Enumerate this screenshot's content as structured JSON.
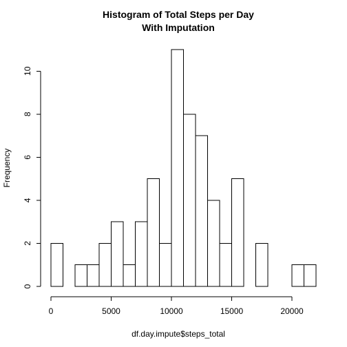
{
  "chart_data": {
    "type": "bar",
    "title": "Histogram of Total Steps per Day",
    "subtitle": "With Imputation",
    "xlabel": "df.day.impute$steps_total",
    "ylabel": "Frequency",
    "bin_width": 1000,
    "bins": [
      {
        "start": 0,
        "end": 1000,
        "count": 2
      },
      {
        "start": 1000,
        "end": 2000,
        "count": 0
      },
      {
        "start": 2000,
        "end": 3000,
        "count": 1
      },
      {
        "start": 3000,
        "end": 4000,
        "count": 1
      },
      {
        "start": 4000,
        "end": 5000,
        "count": 2
      },
      {
        "start": 5000,
        "end": 6000,
        "count": 3
      },
      {
        "start": 6000,
        "end": 7000,
        "count": 1
      },
      {
        "start": 7000,
        "end": 8000,
        "count": 3
      },
      {
        "start": 8000,
        "end": 9000,
        "count": 5
      },
      {
        "start": 9000,
        "end": 10000,
        "count": 2
      },
      {
        "start": 10000,
        "end": 11000,
        "count": 11
      },
      {
        "start": 11000,
        "end": 12000,
        "count": 8
      },
      {
        "start": 12000,
        "end": 13000,
        "count": 7
      },
      {
        "start": 13000,
        "end": 14000,
        "count": 4
      },
      {
        "start": 14000,
        "end": 15000,
        "count": 2
      },
      {
        "start": 15000,
        "end": 16000,
        "count": 5
      },
      {
        "start": 16000,
        "end": 17000,
        "count": 0
      },
      {
        "start": 17000,
        "end": 18000,
        "count": 2
      },
      {
        "start": 18000,
        "end": 19000,
        "count": 0
      },
      {
        "start": 19000,
        "end": 20000,
        "count": 0
      },
      {
        "start": 20000,
        "end": 21000,
        "count": 1
      },
      {
        "start": 21000,
        "end": 22000,
        "count": 1
      }
    ],
    "xlim": [
      0,
      22000
    ],
    "ylim": [
      0,
      11
    ],
    "x_ticks": [
      0,
      5000,
      10000,
      15000,
      20000
    ],
    "y_ticks": [
      0,
      2,
      4,
      6,
      8,
      10
    ],
    "grid": false,
    "bar_fill": "#ffffff",
    "bar_stroke": "#000000"
  }
}
